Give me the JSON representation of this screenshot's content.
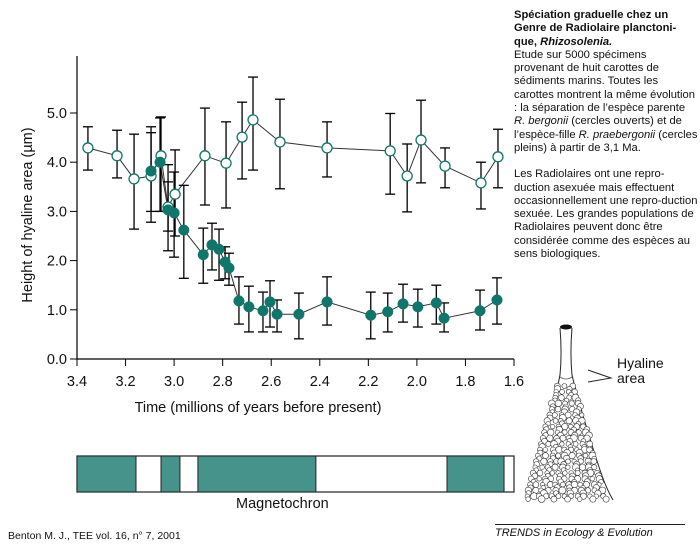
{
  "side_text": {
    "title_bold": "Spéciation graduelle chez un Genre de Radiolaire planctoni-que,",
    "title_italic": "Rhizosolenia.",
    "p1_a": "Etude sur 5000 spécimens provenant de huit carottes de sédiments marins. Toutes les carottes montrent la même évolution : la séparation de l’espèce parente ",
    "p1_species1": "R. bergonii",
    "p1_b": " (cercles ouverts) et de l’espèce-fille ",
    "p1_species2": "R. praebergonii",
    "p1_c": " (cercles pleins) à partir de 3,1 Ma.",
    "p2": "Les Radiolaires ont une repro-duction asexuée mais effectuent occasionnellement une repro-duction sexuée. Les grandes populations de Radiolaires peuvent donc être considérée comme des espèces au sens biologiques."
  },
  "illustration": {
    "label_line1": "Hyaline",
    "label_line2": "area"
  },
  "footer": {
    "citation": "Benton M. J., TEE vol. 16, n° 7, 2001",
    "journal": "TRENDS in Ecology & Evolution"
  },
  "colors": {
    "teal": "#0f766b",
    "magnetochron": "#45938a",
    "open_fill": "#ffffff",
    "axis": "#000000"
  },
  "chart_data": {
    "type": "scatter",
    "title": "",
    "xlabel": "Time (millions of years before present)",
    "ylabel": "Height of hyaline area (µm)",
    "xlim": [
      3.4,
      1.6
    ],
    "ylim": [
      0.0,
      6.0
    ],
    "xticks": [
      "3.4",
      "3.2",
      "3.0",
      "2.8",
      "2.6",
      "2.4",
      "2.2",
      "2.0",
      "1.8",
      "1.6"
    ],
    "xtick_values": [
      3.4,
      3.2,
      3.0,
      2.8,
      2.6,
      2.4,
      2.2,
      2.0,
      1.8,
      1.6
    ],
    "yticks": [
      "0.0",
      "1.0",
      "2.0",
      "3.0",
      "4.0",
      "5.0"
    ],
    "ytick_values": [
      0,
      1,
      2,
      3,
      4,
      5
    ],
    "grid": false,
    "series": [
      {
        "name": "R. bergonii (open circles)",
        "marker": "open",
        "points": [
          {
            "x": 3.355,
            "y": 4.29,
            "lo": 3.84,
            "hi": 4.72
          },
          {
            "x": 3.235,
            "y": 4.13,
            "lo": 3.68,
            "hi": 4.65
          },
          {
            "x": 3.165,
            "y": 3.66,
            "lo": 2.64,
            "hi": 4.57
          },
          {
            "x": 3.095,
            "y": 3.72,
            "lo": 2.78,
            "hi": 4.72
          },
          {
            "x": 3.054,
            "y": 4.13,
            "lo": 3.0,
            "hi": 4.92
          },
          {
            "x": 3.025,
            "y": 3.09,
            "lo": 2.6,
            "hi": 3.6
          },
          {
            "x": 2.996,
            "y": 3.35,
            "lo": 2.5,
            "hi": 4.25
          },
          {
            "x": 2.873,
            "y": 4.13,
            "lo": 3.13,
            "hi": 5.1
          },
          {
            "x": 2.786,
            "y": 3.98,
            "lo": 3.07,
            "hi": 4.82
          },
          {
            "x": 2.72,
            "y": 4.51,
            "lo": 3.66,
            "hi": 5.22
          },
          {
            "x": 2.675,
            "y": 4.86,
            "lo": 3.84,
            "hi": 5.73
          },
          {
            "x": 2.564,
            "y": 4.41,
            "lo": 3.46,
            "hi": 5.28
          },
          {
            "x": 2.37,
            "y": 4.29,
            "lo": 3.7,
            "hi": 4.82
          },
          {
            "x": 2.11,
            "y": 4.23,
            "lo": 3.35,
            "hi": 4.99
          },
          {
            "x": 2.04,
            "y": 3.72,
            "lo": 2.99,
            "hi": 4.37
          },
          {
            "x": 1.983,
            "y": 4.45,
            "lo": 3.58,
            "hi": 5.26
          },
          {
            "x": 1.884,
            "y": 3.92,
            "lo": 3.48,
            "hi": 4.29
          },
          {
            "x": 1.736,
            "y": 3.58,
            "lo": 3.05,
            "hi": 4.0
          },
          {
            "x": 1.666,
            "y": 4.11,
            "lo": 3.48,
            "hi": 4.67
          }
        ]
      },
      {
        "name": "R. praebergonii (filled circles)",
        "marker": "filled",
        "points": [
          {
            "x": 3.095,
            "y": 3.82,
            "lo": 3.0,
            "hi": 4.6
          },
          {
            "x": 3.058,
            "y": 4.0,
            "lo": 3.0,
            "hi": 4.9
          },
          {
            "x": 3.025,
            "y": 3.03,
            "lo": 2.2,
            "hi": 3.95
          },
          {
            "x": 3.0,
            "y": 2.97,
            "lo": 2.07,
            "hi": 3.8
          },
          {
            "x": 2.96,
            "y": 2.62,
            "lo": 1.64,
            "hi": 3.53
          },
          {
            "x": 2.88,
            "y": 2.12,
            "lo": 1.54,
            "hi": 2.66
          },
          {
            "x": 2.844,
            "y": 2.32,
            "lo": 1.81,
            "hi": 2.76
          },
          {
            "x": 2.815,
            "y": 2.23,
            "lo": 1.6,
            "hi": 2.64
          },
          {
            "x": 2.79,
            "y": 1.97,
            "lo": 1.63,
            "hi": 2.28
          },
          {
            "x": 2.774,
            "y": 1.85,
            "lo": 1.5,
            "hi": 2.15
          },
          {
            "x": 2.733,
            "y": 1.18,
            "lo": 0.71,
            "hi": 1.67
          },
          {
            "x": 2.692,
            "y": 1.06,
            "lo": 0.55,
            "hi": 1.48
          },
          {
            "x": 2.634,
            "y": 0.98,
            "lo": 0.55,
            "hi": 1.36
          },
          {
            "x": 2.605,
            "y": 1.16,
            "lo": 0.65,
            "hi": 1.59
          },
          {
            "x": 2.576,
            "y": 0.91,
            "lo": 0.55,
            "hi": 1.2
          },
          {
            "x": 2.486,
            "y": 0.91,
            "lo": 0.41,
            "hi": 1.34
          },
          {
            "x": 2.37,
            "y": 1.16,
            "lo": 0.69,
            "hi": 1.67
          },
          {
            "x": 2.19,
            "y": 0.89,
            "lo": 0.41,
            "hi": 1.36
          },
          {
            "x": 2.12,
            "y": 0.96,
            "lo": 0.55,
            "hi": 1.34
          },
          {
            "x": 2.057,
            "y": 1.12,
            "lo": 0.75,
            "hi": 1.52
          },
          {
            "x": 1.996,
            "y": 1.06,
            "lo": 0.65,
            "hi": 1.42
          },
          {
            "x": 1.92,
            "y": 1.14,
            "lo": 0.71,
            "hi": 1.5
          },
          {
            "x": 1.888,
            "y": 0.83,
            "lo": 0.55,
            "hi": 1.14
          },
          {
            "x": 1.74,
            "y": 0.98,
            "lo": 0.59,
            "hi": 1.4
          },
          {
            "x": 1.67,
            "y": 1.2,
            "lo": 0.71,
            "hi": 1.65
          }
        ]
      }
    ],
    "magnetochron": {
      "label": "Magnetochron",
      "range": [
        3.4,
        1.6
      ],
      "normal_intervals": [
        [
          3.4,
          3.157
        ],
        [
          3.054,
          2.976
        ],
        [
          2.902,
          2.416
        ],
        [
          1.876,
          1.641
        ]
      ]
    }
  }
}
